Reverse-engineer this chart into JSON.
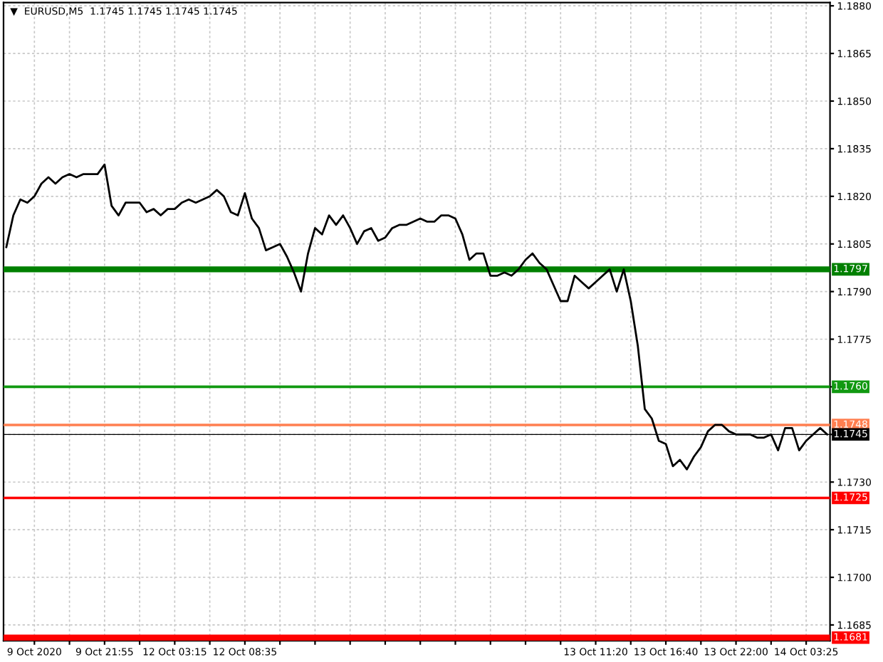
{
  "chart_data": {
    "type": "line",
    "title": "▼  EURUSD,M5  1.1745 1.1745 1.1745 1.1745",
    "categories": [
      null,
      null,
      null,
      null,
      "9 Oct 2020",
      null,
      null,
      null,
      null,
      null,
      null,
      null,
      null,
      null,
      "9 Oct 21:55",
      null,
      null,
      null,
      null,
      null,
      null,
      null,
      null,
      null,
      "12 Oct 03:15",
      null,
      null,
      null,
      null,
      null,
      null,
      null,
      null,
      null,
      "12 Oct 08:35",
      null,
      null,
      null,
      null,
      null,
      null,
      null,
      null,
      null,
      null,
      null,
      null,
      null,
      null,
      null,
      null,
      null,
      null,
      null,
      null,
      null,
      null,
      null,
      null,
      null,
      null,
      null,
      null,
      null,
      null,
      null,
      null,
      null,
      null,
      null,
      null,
      null,
      null,
      null,
      null,
      null,
      null,
      null,
      null,
      null,
      null,
      null,
      null,
      null,
      "13 Oct 11:20",
      null,
      null,
      null,
      null,
      null,
      null,
      null,
      null,
      null,
      "13 Oct 16:40",
      null,
      null,
      null,
      null,
      null,
      null,
      null,
      null,
      null,
      "13 Oct 22:00",
      null,
      null,
      null,
      null,
      null,
      null,
      null,
      null,
      null,
      "14 Oct 03:25",
      null,
      null,
      null
    ],
    "series": [
      {
        "color": "#000000",
        "values": [
          1.1804,
          1.1814,
          1.1819,
          1.1818,
          1.182,
          1.1824,
          1.1826,
          1.1824,
          1.1826,
          1.1827,
          1.1826,
          1.1827,
          1.1827,
          1.1827,
          1.183,
          1.1817,
          1.1814,
          1.1818,
          1.1818,
          1.1818,
          1.1815,
          1.1816,
          1.1814,
          1.1816,
          1.1816,
          1.1818,
          1.1819,
          1.1818,
          1.1819,
          1.182,
          1.1822,
          1.182,
          1.1815,
          1.1814,
          1.1821,
          1.1813,
          1.181,
          1.1803,
          1.1804,
          1.1805,
          1.1801,
          1.1796,
          1.179,
          1.1802,
          1.181,
          1.1808,
          1.1814,
          1.1811,
          1.1814,
          1.181,
          1.1805,
          1.1809,
          1.181,
          1.1806,
          1.1807,
          1.181,
          1.1811,
          1.1811,
          1.1812,
          1.1813,
          1.1812,
          1.1812,
          1.1814,
          1.1814,
          1.1813,
          1.1808,
          1.18,
          1.1802,
          1.1802,
          1.1795,
          1.1795,
          1.1796,
          1.1795,
          1.1797,
          1.18,
          1.1802,
          1.1799,
          1.1797,
          1.1792,
          1.1787,
          1.1787,
          1.1795,
          1.1793,
          1.1791,
          1.1793,
          1.1795,
          1.1797,
          1.179,
          1.1797,
          1.1787,
          1.1773,
          1.1753,
          1.175,
          1.1743,
          1.1742,
          1.1735,
          1.1737,
          1.1734,
          1.1738,
          1.1741,
          1.1746,
          1.1748,
          1.1748,
          1.1746,
          1.1745,
          1.1745,
          1.1745,
          1.1744,
          1.1744,
          1.1745,
          1.174,
          1.1747,
          1.1747,
          1.174,
          1.1743,
          1.1745,
          1.1747,
          1.1745
        ]
      }
    ],
    "ylim": [
      1.168,
      1.1881
    ],
    "yticks": [
      {
        "value": 1.1685,
        "label": "1.1685"
      },
      {
        "value": 1.17,
        "label": "1.1700"
      },
      {
        "value": 1.1715,
        "label": "1.1715"
      },
      {
        "value": 1.173,
        "label": "1.1730"
      },
      {
        "value": 1.1745,
        "label": null
      },
      {
        "value": 1.176,
        "label": null
      },
      {
        "value": 1.1775,
        "label": "1.1775"
      },
      {
        "value": 1.179,
        "label": "1.1790"
      },
      {
        "value": 1.1805,
        "label": "1.1805"
      },
      {
        "value": 1.182,
        "label": "1.1820"
      },
      {
        "value": 1.1835,
        "label": "1.1835"
      },
      {
        "value": 1.185,
        "label": "1.1850"
      },
      {
        "value": 1.1865,
        "label": "1.1865"
      },
      {
        "value": 1.188,
        "label": "1.1880"
      }
    ],
    "ref_lines": [
      {
        "axis": "y",
        "value": 1.1797,
        "label": "1.1797",
        "color": "#008000"
      },
      {
        "axis": "y",
        "value": 1.176,
        "label": "1.1760",
        "color": "#119911"
      },
      {
        "axis": "y",
        "value": 1.1748,
        "label": "1.1748",
        "color": "#ff7f50"
      },
      {
        "axis": "y",
        "value": 1.1745,
        "label": "1.1745",
        "color": "#000000"
      },
      {
        "axis": "y",
        "value": 1.1725,
        "label": "1.1725",
        "color": "#ff0000"
      },
      {
        "axis": "y",
        "value": 1.1681,
        "label": "1.1681",
        "color": "#ff0000"
      }
    ],
    "grid": true,
    "legend": false,
    "marker": "none",
    "line_style": "solid"
  }
}
